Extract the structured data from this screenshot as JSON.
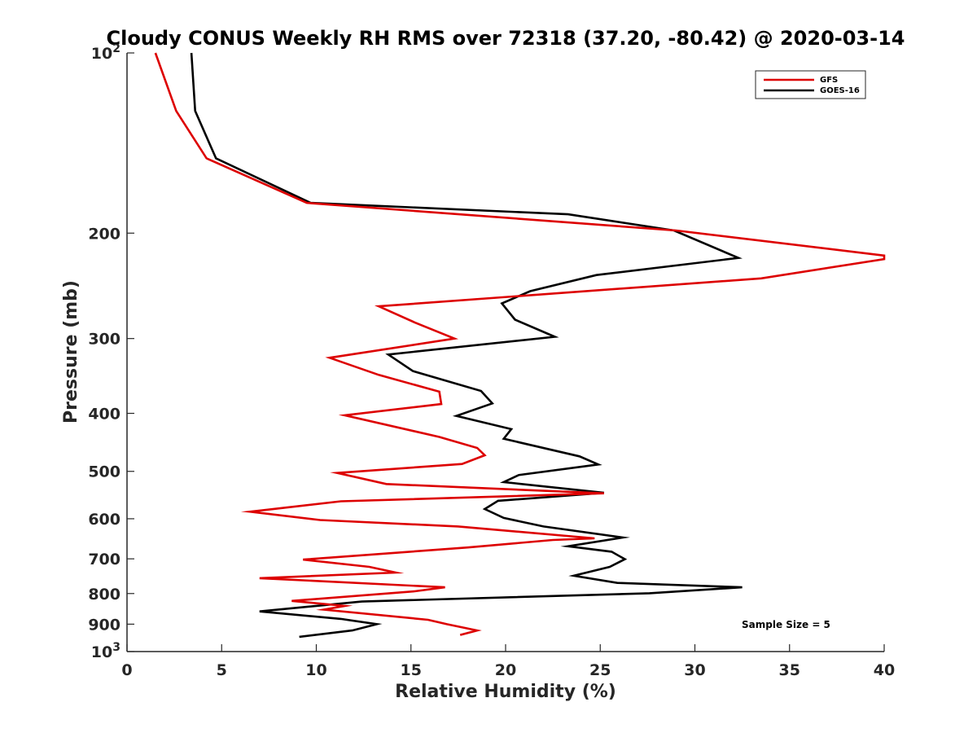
{
  "colors": {
    "gfs": "#dd0000",
    "goes": "#000000",
    "axis": "#262626"
  },
  "chart_data": {
    "type": "line",
    "title": "Cloudy CONUS Weekly RH RMS over 72318 (37.20, -80.42) @ 2020-03-14",
    "xlabel": "Relative Humidity (%)",
    "ylabel": "Pressure (mb)",
    "xlim": [
      0,
      40
    ],
    "ylim": [
      100,
      1000
    ],
    "yscale": "log",
    "y_reversed": true,
    "x_ticks": [
      0,
      5,
      10,
      15,
      20,
      25,
      30,
      35,
      40
    ],
    "x_tick_labels": [
      "0",
      "5",
      "10",
      "15",
      "20",
      "25",
      "30",
      "35",
      "40"
    ],
    "y_ticks": [
      100,
      200,
      300,
      400,
      500,
      600,
      700,
      800,
      900,
      1000
    ],
    "y_tick_labels": [
      {
        "base": "10",
        "sup": "2"
      },
      {
        "base": "200",
        "sup": ""
      },
      {
        "base": "300",
        "sup": ""
      },
      {
        "base": "400",
        "sup": ""
      },
      {
        "base": "500",
        "sup": ""
      },
      {
        "base": "600",
        "sup": ""
      },
      {
        "base": "700",
        "sup": ""
      },
      {
        "base": "800",
        "sup": ""
      },
      {
        "base": "900",
        "sup": ""
      },
      {
        "base": "10",
        "sup": "3"
      }
    ],
    "legend": {
      "location": "top-right",
      "entries": [
        "GFS",
        "GOES-16"
      ]
    },
    "annotation": "Sample Size = 5",
    "series": [
      {
        "name": "GFS",
        "color": "#dd0000",
        "points": [
          [
            1.5,
            100
          ],
          [
            2.6,
            125
          ],
          [
            4.2,
            150
          ],
          [
            9.5,
            178
          ],
          [
            29,
            198
          ],
          [
            40,
            218
          ],
          [
            40,
            221
          ],
          [
            33.5,
            238
          ],
          [
            13.3,
            265
          ],
          [
            15.2,
            282
          ],
          [
            17.3,
            300
          ],
          [
            10.7,
            323
          ],
          [
            13.3,
            345
          ],
          [
            16.5,
            368
          ],
          [
            16.6,
            386
          ],
          [
            11.5,
            403
          ],
          [
            16.5,
            438
          ],
          [
            18.5,
            457
          ],
          [
            18.9,
            470
          ],
          [
            17.7,
            486
          ],
          [
            11.1,
            503
          ],
          [
            13.7,
            525
          ],
          [
            25.2,
            544
          ],
          [
            11.3,
            561
          ],
          [
            6.5,
            584
          ],
          [
            10.2,
            603
          ],
          [
            17.5,
            618
          ],
          [
            24.7,
            647
          ],
          [
            22.5,
            651
          ],
          [
            18,
            670
          ],
          [
            9.3,
            702
          ],
          [
            12.8,
            722
          ],
          [
            14.2,
            738
          ],
          [
            7,
            754
          ],
          [
            16.8,
            781
          ],
          [
            15.2,
            793
          ],
          [
            8.7,
            823
          ],
          [
            11.5,
            839
          ],
          [
            10.4,
            851
          ],
          [
            15.9,
            885
          ],
          [
            16.9,
            900
          ],
          [
            18.5,
            922
          ],
          [
            17.6,
            938
          ]
        ]
      },
      {
        "name": "GOES-16",
        "color": "#000000",
        "points": [
          [
            3.4,
            100
          ],
          [
            3.6,
            125
          ],
          [
            4.7,
            150
          ],
          [
            9.7,
            178
          ],
          [
            23.3,
            186
          ],
          [
            28.9,
            198
          ],
          [
            32.3,
            220
          ],
          [
            24.8,
            235
          ],
          [
            21.3,
            250
          ],
          [
            19.8,
            262
          ],
          [
            20.5,
            279
          ],
          [
            22.6,
            298
          ],
          [
            13.8,
            319
          ],
          [
            15.1,
            340
          ],
          [
            18.7,
            367
          ],
          [
            19.3,
            385
          ],
          [
            17.4,
            404
          ],
          [
            20.3,
            425
          ],
          [
            19.9,
            441
          ],
          [
            23.9,
            472
          ],
          [
            24.9,
            487
          ],
          [
            20.7,
            507
          ],
          [
            19.9,
            521
          ],
          [
            25.2,
            543
          ],
          [
            19.6,
            560
          ],
          [
            18.9,
            578
          ],
          [
            19.9,
            598
          ],
          [
            22,
            618
          ],
          [
            26.2,
            645
          ],
          [
            23.3,
            667
          ],
          [
            25.6,
            681
          ],
          [
            26.3,
            701
          ],
          [
            25.5,
            722
          ],
          [
            23.6,
            747
          ],
          [
            25.9,
            768
          ],
          [
            32.5,
            781
          ],
          [
            27.6,
            799
          ],
          [
            12.4,
            825
          ],
          [
            7,
            857
          ],
          [
            11.3,
            882
          ],
          [
            13.2,
            900
          ],
          [
            11.9,
            922
          ],
          [
            9.1,
            945
          ]
        ]
      }
    ]
  }
}
